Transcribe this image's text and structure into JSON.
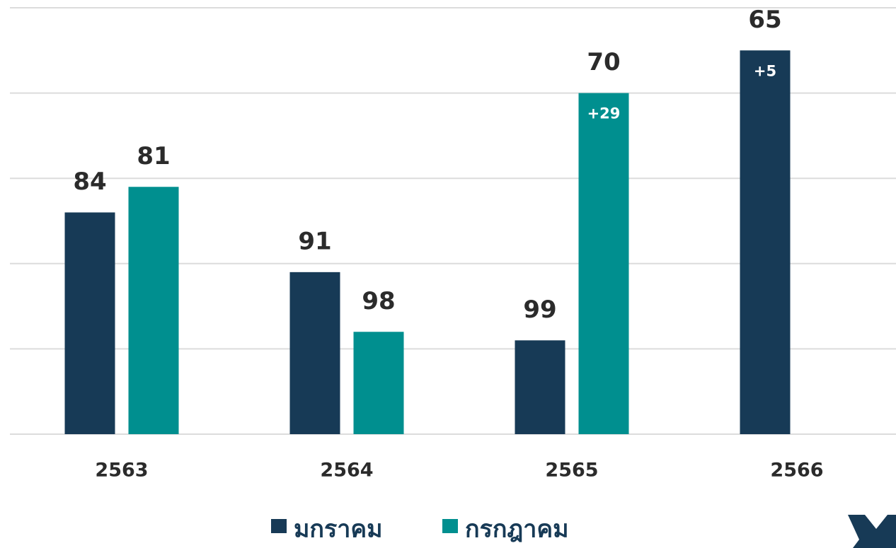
{
  "chart_data": {
    "type": "bar",
    "categories": [
      "2563",
      "2564",
      "2565",
      "2566"
    ],
    "series": [
      {
        "name": "มกราคม",
        "color": "#173a56",
        "values": [
          84,
          91,
          99,
          65
        ]
      },
      {
        "name": "กรกฎาคม",
        "color": "#008f8f",
        "values": [
          81,
          98,
          70,
          null
        ]
      }
    ],
    "annotations": [
      {
        "series": 1,
        "index": 2,
        "text": "+29"
      },
      {
        "series": 0,
        "index": 3,
        "text": "+5"
      }
    ],
    "ylim": [
      110,
      60
    ],
    "yticks": [
      110,
      100,
      90,
      80,
      70,
      60
    ],
    "grid": true,
    "legend": "bottom"
  }
}
